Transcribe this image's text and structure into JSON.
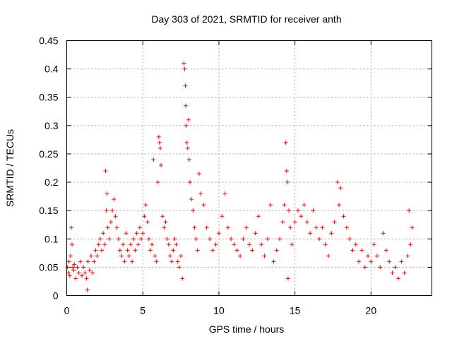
{
  "chart_data": {
    "type": "scatter",
    "title": "Day 303 of 2021, SRMTID for receiver anth",
    "xlabel": "GPS time / hours",
    "ylabel": "SRMTID / TECUs",
    "xlim": [
      0,
      24
    ],
    "ylim": [
      0,
      0.45
    ],
    "xticks": [
      0,
      5,
      10,
      15,
      20
    ],
    "yticks": [
      0,
      0.05,
      0.1,
      0.15,
      0.2,
      0.25,
      0.3,
      0.35,
      0.4,
      0.45
    ],
    "ytick_labels": [
      "0",
      "0.05",
      "0.1",
      "0.15",
      "0.2",
      "0.25",
      "0.3",
      "0.35",
      "0.4",
      "0.45"
    ],
    "marker": "+",
    "grid": true,
    "color": "#ff0000",
    "series": [
      {
        "name": "anth",
        "points": [
          [
            0.05,
            0.05
          ],
          [
            0.1,
            0.04
          ],
          [
            0.15,
            0.06
          ],
          [
            0.2,
            0.035
          ],
          [
            0.25,
            0.07
          ],
          [
            0.3,
            0.12
          ],
          [
            0.35,
            0.09
          ],
          [
            0.4,
            0.05
          ],
          [
            0.45,
            0.045
          ],
          [
            0.5,
            0.055
          ],
          [
            0.6,
            0.03
          ],
          [
            0.7,
            0.05
          ],
          [
            0.8,
            0.04
          ],
          [
            0.9,
            0.06
          ],
          [
            1.0,
            0.035
          ],
          [
            1.1,
            0.05
          ],
          [
            1.2,
            0.04
          ],
          [
            1.3,
            0.03
          ],
          [
            1.35,
            0.01
          ],
          [
            1.4,
            0.06
          ],
          [
            1.5,
            0.045
          ],
          [
            1.6,
            0.07
          ],
          [
            1.7,
            0.04
          ],
          [
            1.8,
            0.06
          ],
          [
            1.9,
            0.08
          ],
          [
            2.0,
            0.07
          ],
          [
            2.1,
            0.09
          ],
          [
            2.2,
            0.1
          ],
          [
            2.3,
            0.08
          ],
          [
            2.4,
            0.11
          ],
          [
            2.5,
            0.09
          ],
          [
            2.55,
            0.22
          ],
          [
            2.6,
            0.15
          ],
          [
            2.65,
            0.18
          ],
          [
            2.7,
            0.12
          ],
          [
            2.8,
            0.1
          ],
          [
            2.9,
            0.13
          ],
          [
            3.0,
            0.15
          ],
          [
            3.1,
            0.17
          ],
          [
            3.2,
            0.14
          ],
          [
            3.3,
            0.12
          ],
          [
            3.4,
            0.1
          ],
          [
            3.5,
            0.08
          ],
          [
            3.6,
            0.07
          ],
          [
            3.7,
            0.09
          ],
          [
            3.8,
            0.06
          ],
          [
            3.9,
            0.11
          ],
          [
            4.0,
            0.08
          ],
          [
            4.1,
            0.07
          ],
          [
            4.2,
            0.09
          ],
          [
            4.3,
            0.06
          ],
          [
            4.4,
            0.1
          ],
          [
            4.5,
            0.08
          ],
          [
            4.6,
            0.11
          ],
          [
            4.7,
            0.09
          ],
          [
            4.8,
            0.12
          ],
          [
            4.9,
            0.1
          ],
          [
            5.0,
            0.11
          ],
          [
            5.1,
            0.14
          ],
          [
            5.2,
            0.16
          ],
          [
            5.3,
            0.13
          ],
          [
            5.4,
            0.1
          ],
          [
            5.5,
            0.08
          ],
          [
            5.6,
            0.09
          ],
          [
            5.7,
            0.24
          ],
          [
            5.8,
            0.07
          ],
          [
            5.9,
            0.06
          ],
          [
            6.0,
            0.2
          ],
          [
            6.05,
            0.28
          ],
          [
            6.1,
            0.27
          ],
          [
            6.15,
            0.26
          ],
          [
            6.2,
            0.23
          ],
          [
            6.3,
            0.14
          ],
          [
            6.4,
            0.12
          ],
          [
            6.5,
            0.13
          ],
          [
            6.6,
            0.1
          ],
          [
            6.7,
            0.09
          ],
          [
            6.8,
            0.07
          ],
          [
            6.9,
            0.06
          ],
          [
            7.0,
            0.08
          ],
          [
            7.1,
            0.1
          ],
          [
            7.2,
            0.09
          ],
          [
            7.3,
            0.06
          ],
          [
            7.4,
            0.05
          ],
          [
            7.5,
            0.07
          ],
          [
            7.6,
            0.03
          ],
          [
            7.7,
            0.41
          ],
          [
            7.75,
            0.4
          ],
          [
            7.8,
            0.37
          ],
          [
            7.82,
            0.335
          ],
          [
            7.85,
            0.3
          ],
          [
            7.9,
            0.27
          ],
          [
            7.95,
            0.26
          ],
          [
            8.0,
            0.31
          ],
          [
            8.05,
            0.24
          ],
          [
            8.1,
            0.2
          ],
          [
            8.2,
            0.17
          ],
          [
            8.3,
            0.15
          ],
          [
            8.4,
            0.12
          ],
          [
            8.5,
            0.1
          ],
          [
            8.6,
            0.08
          ],
          [
            8.7,
            0.215
          ],
          [
            8.8,
            0.18
          ],
          [
            9.0,
            0.16
          ],
          [
            9.2,
            0.12
          ],
          [
            9.4,
            0.1
          ],
          [
            9.6,
            0.08
          ],
          [
            9.8,
            0.09
          ],
          [
            10.0,
            0.11
          ],
          [
            10.2,
            0.14
          ],
          [
            10.4,
            0.18
          ],
          [
            10.6,
            0.12
          ],
          [
            10.8,
            0.1
          ],
          [
            11.0,
            0.09
          ],
          [
            11.2,
            0.08
          ],
          [
            11.4,
            0.07
          ],
          [
            11.6,
            0.1
          ],
          [
            11.8,
            0.12
          ],
          [
            12.0,
            0.09
          ],
          [
            12.2,
            0.08
          ],
          [
            12.4,
            0.11
          ],
          [
            12.6,
            0.14
          ],
          [
            12.8,
            0.09
          ],
          [
            13.0,
            0.07
          ],
          [
            13.2,
            0.1
          ],
          [
            13.4,
            0.16
          ],
          [
            13.6,
            0.06
          ],
          [
            13.8,
            0.08
          ],
          [
            14.0,
            0.1
          ],
          [
            14.2,
            0.13
          ],
          [
            14.3,
            0.16
          ],
          [
            14.4,
            0.27
          ],
          [
            14.45,
            0.22
          ],
          [
            14.5,
            0.2
          ],
          [
            14.55,
            0.03
          ],
          [
            14.6,
            0.15
          ],
          [
            14.7,
            0.12
          ],
          [
            14.8,
            0.09
          ],
          [
            15.0,
            0.13
          ],
          [
            15.2,
            0.15
          ],
          [
            15.4,
            0.14
          ],
          [
            15.6,
            0.16
          ],
          [
            15.8,
            0.13
          ],
          [
            16.0,
            0.11
          ],
          [
            16.2,
            0.15
          ],
          [
            16.4,
            0.12
          ],
          [
            16.6,
            0.1
          ],
          [
            16.8,
            0.12
          ],
          [
            17.0,
            0.09
          ],
          [
            17.2,
            0.07
          ],
          [
            17.4,
            0.11
          ],
          [
            17.6,
            0.13
          ],
          [
            17.8,
            0.2
          ],
          [
            17.9,
            0.16
          ],
          [
            18.0,
            0.19
          ],
          [
            18.2,
            0.14
          ],
          [
            18.4,
            0.12
          ],
          [
            18.6,
            0.1
          ],
          [
            18.8,
            0.08
          ],
          [
            19.0,
            0.09
          ],
          [
            19.2,
            0.06
          ],
          [
            19.4,
            0.08
          ],
          [
            19.6,
            0.05
          ],
          [
            19.8,
            0.07
          ],
          [
            20.0,
            0.06
          ],
          [
            20.2,
            0.09
          ],
          [
            20.4,
            0.07
          ],
          [
            20.6,
            0.05
          ],
          [
            20.8,
            0.11
          ],
          [
            21.0,
            0.08
          ],
          [
            21.2,
            0.06
          ],
          [
            21.4,
            0.04
          ],
          [
            21.6,
            0.05
          ],
          [
            21.8,
            0.03
          ],
          [
            22.0,
            0.06
          ],
          [
            22.2,
            0.04
          ],
          [
            22.4,
            0.07
          ],
          [
            22.5,
            0.15
          ],
          [
            22.6,
            0.09
          ],
          [
            22.7,
            0.12
          ]
        ]
      }
    ]
  }
}
